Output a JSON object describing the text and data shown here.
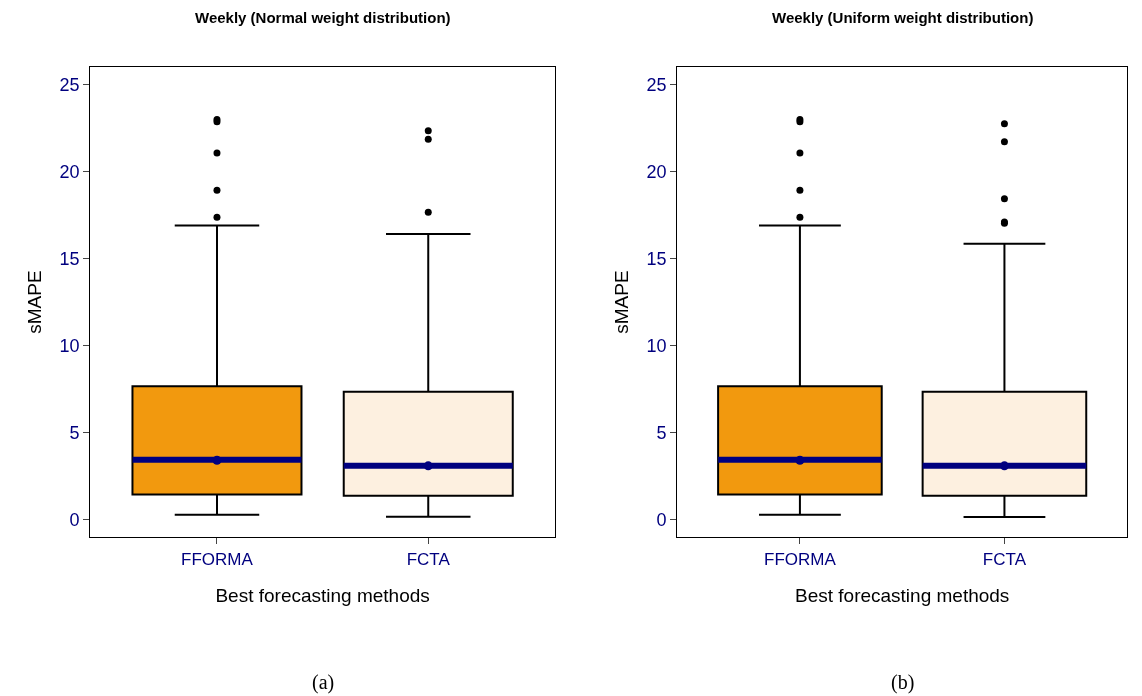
{
  "chart_data": [
    {
      "type": "box",
      "title": "Weekly (Normal weight distribution)",
      "xlabel": "Best forecasting methods",
      "ylabel": "sMAPE",
      "annotations": [
        "(a)"
      ],
      "categories": [
        "FFORMA",
        "FCTA"
      ],
      "colors": [
        "#f2990e",
        "#fdf0e0"
      ],
      "boxes": [
        {
          "low": 0.3,
          "q1": 1.46,
          "median": 3.45,
          "q3": 7.67,
          "high": 16.9,
          "mean": 3.42,
          "outliers": [
            22.97,
            22.85,
            21.06,
            18.91,
            17.37
          ]
        },
        {
          "low": 0.18,
          "q1": 1.39,
          "median": 3.1,
          "q3": 7.36,
          "high": 16.41,
          "mean": 3.1,
          "outliers": [
            22.33,
            21.84,
            17.66
          ]
        }
      ],
      "ylim": [
        -1,
        26
      ],
      "yticks": [
        0,
        5,
        10,
        15,
        20,
        25
      ]
    },
    {
      "type": "box",
      "title": "Weekly (Uniform weight distribution)",
      "xlabel": "Best forecasting methods",
      "ylabel": "sMAPE",
      "annotations": [
        "(b)"
      ],
      "categories": [
        "FFORMA",
        "FCTA"
      ],
      "colors": [
        "#f2990e",
        "#fdf0e0"
      ],
      "boxes": [
        {
          "low": 0.3,
          "q1": 1.46,
          "median": 3.45,
          "q3": 7.67,
          "high": 16.9,
          "mean": 3.42,
          "outliers": [
            22.97,
            22.85,
            21.06,
            18.91,
            17.37
          ]
        },
        {
          "low": 0.17,
          "q1": 1.39,
          "median": 3.1,
          "q3": 7.35,
          "high": 15.85,
          "mean": 3.1,
          "outliers": [
            22.73,
            21.7,
            18.43,
            17.1,
            17.02
          ]
        }
      ],
      "ylim": [
        -1,
        26
      ],
      "yticks": [
        0,
        5,
        10,
        15,
        20,
        25
      ]
    }
  ]
}
